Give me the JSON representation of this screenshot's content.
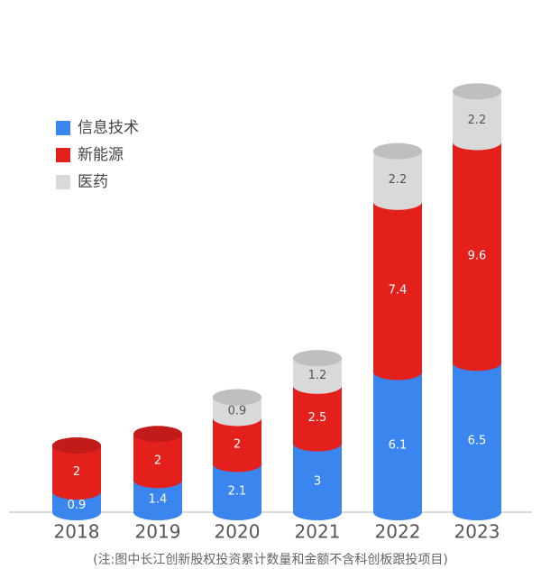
{
  "chart_data": {
    "type": "stacked-cylinder",
    "categories": [
      "2018",
      "2019",
      "2020",
      "2021",
      "2022",
      "2023"
    ],
    "series": [
      {
        "name": "信息技术",
        "color": "#3a86ee",
        "values": [
          0.9,
          1.4,
          2.1,
          3,
          6.1,
          6.5
        ]
      },
      {
        "name": "新能源",
        "color": "#e4201d",
        "values": [
          2,
          2,
          2,
          2.5,
          7.4,
          9.6
        ]
      },
      {
        "name": "医药",
        "color": "#d9d9d9",
        "values": [
          null,
          null,
          0.9,
          1.2,
          2.2,
          2.2
        ]
      }
    ],
    "legend": "upper-left",
    "footnote": "(注:图中长江创新股权投资累计数量和金额不含科创板跟投项目)"
  }
}
